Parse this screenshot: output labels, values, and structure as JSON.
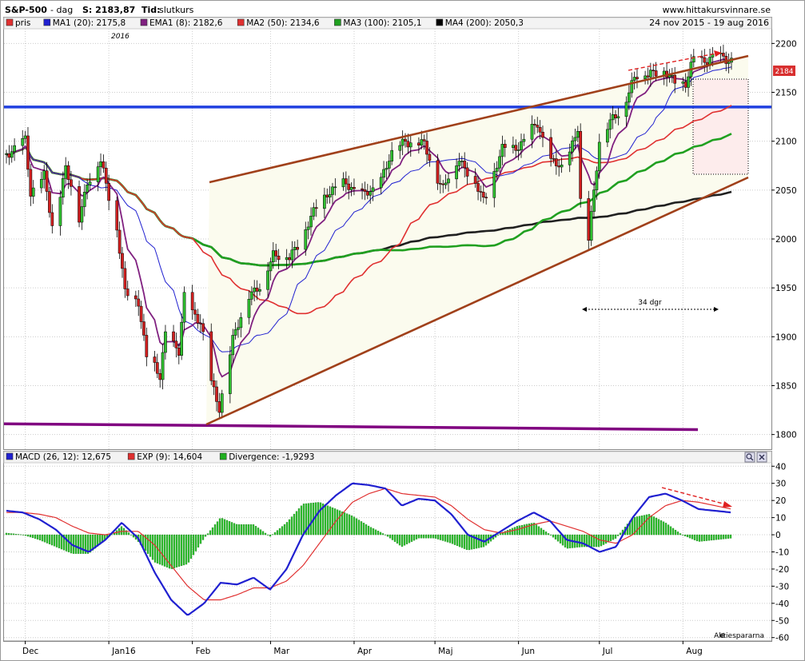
{
  "header": {
    "symbol": "S&P-500",
    "period": "- dag",
    "close_label": "S: 2183,87",
    "type_prefix": "Tid:",
    "type_value": "slutkurs",
    "site": "www.hittakursvinnare.se",
    "date_range": "24 nov 2015 - 19 aug 2016"
  },
  "legend_top": [
    {
      "label": "pris",
      "color": "#e03030"
    },
    {
      "label": "MA1 (20): 2175,8",
      "color": "#2020d0"
    },
    {
      "label": "EMA1 (8): 2182,6",
      "color": "#802080"
    },
    {
      "label": "MA2 (50): 2134,6",
      "color": "#e03030"
    },
    {
      "label": "MA3 (100): 2105,1",
      "color": "#20a020"
    },
    {
      "label": "MA4 (200): 2050,3",
      "color": "#000000"
    }
  ],
  "legend_bottom": [
    {
      "label": "MACD (26, 12): 12,675",
      "color": "#2020d0"
    },
    {
      "label": "EXP (9): 14,604",
      "color": "#e03030"
    },
    {
      "label": "Divergence: -1,9293",
      "color": "#20b020"
    }
  ],
  "year_label": "2016",
  "price_badge": "2184",
  "annotation_days": "34 dgr",
  "watermark": "Aktiespararna",
  "chart_data": [
    {
      "type": "candlestick",
      "title": "S&P-500",
      "x_labels": [
        "Dec",
        "Jan16",
        "Feb",
        "Mar",
        "Apr",
        "Maj",
        "Jun",
        "Jul",
        "Aug"
      ],
      "y_ticks": [
        1800,
        1850,
        1900,
        1950,
        2000,
        2050,
        2100,
        2150,
        2200
      ],
      "ylim": [
        1785,
        2215
      ],
      "points": [
        {
          "d": "2015-11-24",
          "c": 2089
        },
        {
          "d": "2015-11-27",
          "c": 2090
        },
        {
          "d": "2015-12-01",
          "c": 2102
        },
        {
          "d": "2015-12-03",
          "c": 2049
        },
        {
          "d": "2015-12-08",
          "c": 2063
        },
        {
          "d": "2015-12-11",
          "c": 2012
        },
        {
          "d": "2015-12-16",
          "c": 2073
        },
        {
          "d": "2015-12-21",
          "c": 2021
        },
        {
          "d": "2015-12-24",
          "c": 2060
        },
        {
          "d": "2015-12-29",
          "c": 2078
        },
        {
          "d": "2016-01-04",
          "c": 2012
        },
        {
          "d": "2016-01-07",
          "c": 1943
        },
        {
          "d": "2016-01-12",
          "c": 1938
        },
        {
          "d": "2016-01-15",
          "c": 1880
        },
        {
          "d": "2016-01-20",
          "c": 1859
        },
        {
          "d": "2016-01-22",
          "c": 1906
        },
        {
          "d": "2016-01-27",
          "c": 1882
        },
        {
          "d": "2016-01-29",
          "c": 1940
        },
        {
          "d": "2016-02-04",
          "c": 1915
        },
        {
          "d": "2016-02-08",
          "c": 1853
        },
        {
          "d": "2016-02-11",
          "c": 1829
        },
        {
          "d": "2016-02-16",
          "c": 1895
        },
        {
          "d": "2016-02-22",
          "c": 1945
        },
        {
          "d": "2016-02-26",
          "c": 1948
        },
        {
          "d": "2016-03-02",
          "c": 1987
        },
        {
          "d": "2016-03-08",
          "c": 1979
        },
        {
          "d": "2016-03-15",
          "c": 2016
        },
        {
          "d": "2016-03-22",
          "c": 2049
        },
        {
          "d": "2016-03-29",
          "c": 2056
        },
        {
          "d": "2016-04-05",
          "c": 2045
        },
        {
          "d": "2016-04-08",
          "c": 2047
        },
        {
          "d": "2016-04-14",
          "c": 2082
        },
        {
          "d": "2016-04-20",
          "c": 2102
        },
        {
          "d": "2016-04-27",
          "c": 2095
        },
        {
          "d": "2016-05-04",
          "c": 2051
        },
        {
          "d": "2016-05-10",
          "c": 2084
        },
        {
          "d": "2016-05-19",
          "c": 2040
        },
        {
          "d": "2016-05-26",
          "c": 2090
        },
        {
          "d": "2016-06-03",
          "c": 2099
        },
        {
          "d": "2016-06-08",
          "c": 2119
        },
        {
          "d": "2016-06-13",
          "c": 2079
        },
        {
          "d": "2016-06-17",
          "c": 2071
        },
        {
          "d": "2016-06-23",
          "c": 2113
        },
        {
          "d": "2016-06-24",
          "c": 2037
        },
        {
          "d": "2016-06-27",
          "c": 2000
        },
        {
          "d": "2016-07-01",
          "c": 2102
        },
        {
          "d": "2016-07-08",
          "c": 2129
        },
        {
          "d": "2016-07-14",
          "c": 2163
        },
        {
          "d": "2016-07-20",
          "c": 2173
        },
        {
          "d": "2016-07-27",
          "c": 2166
        },
        {
          "d": "2016-08-02",
          "c": 2157
        },
        {
          "d": "2016-08-05",
          "c": 2183
        },
        {
          "d": "2016-08-11",
          "c": 2185
        },
        {
          "d": "2016-08-19",
          "c": 2184
        }
      ],
      "annotations": [
        {
          "kind": "horizontal_line",
          "y": 2135,
          "color": "#2040e0"
        },
        {
          "kind": "horizontal_line",
          "y": 1808,
          "color": "#800080"
        }
      ]
    },
    {
      "type": "line",
      "title": "MACD (26, 12)",
      "y_ticks": [
        -60,
        -50,
        -40,
        -30,
        -20,
        -10,
        0,
        10,
        20,
        30,
        40
      ],
      "ylim": [
        -62,
        42
      ],
      "series": [
        {
          "name": "MACD (26, 12)",
          "values": [
            14,
            13,
            9,
            3,
            -6,
            -10,
            -3,
            7,
            -2,
            -22,
            -38,
            -47,
            -40,
            -28,
            -29,
            -25,
            -32,
            -20,
            0,
            14,
            23,
            30,
            29,
            27,
            17,
            21,
            20,
            12,
            0,
            -4,
            2,
            8,
            13,
            8,
            -3,
            -5,
            -10,
            -7,
            10,
            22,
            24,
            20,
            15,
            14,
            13
          ]
        },
        {
          "name": "EXP (9)",
          "values": [
            13,
            13,
            12,
            10,
            5,
            1,
            0,
            2,
            2,
            -6,
            -18,
            -30,
            -38,
            -38,
            -35,
            -31,
            -31,
            -27,
            -18,
            -5,
            8,
            19,
            24,
            27,
            24,
            23,
            22,
            17,
            9,
            3,
            1,
            3,
            6,
            8,
            5,
            2,
            -3,
            -5,
            0,
            10,
            17,
            20,
            19,
            17,
            15
          ]
        },
        {
          "name": "Divergence",
          "values": [
            1,
            0,
            -3,
            -7,
            -11,
            -11,
            -3,
            5,
            -4,
            -16,
            -20,
            -17,
            -2,
            10,
            6,
            6,
            -1,
            7,
            18,
            19,
            15,
            11,
            5,
            0,
            -7,
            -2,
            -2,
            -5,
            -9,
            -7,
            1,
            5,
            7,
            0,
            -8,
            -7,
            -7,
            -2,
            10,
            12,
            7,
            0,
            -4,
            -3,
            -2
          ]
        }
      ]
    }
  ]
}
